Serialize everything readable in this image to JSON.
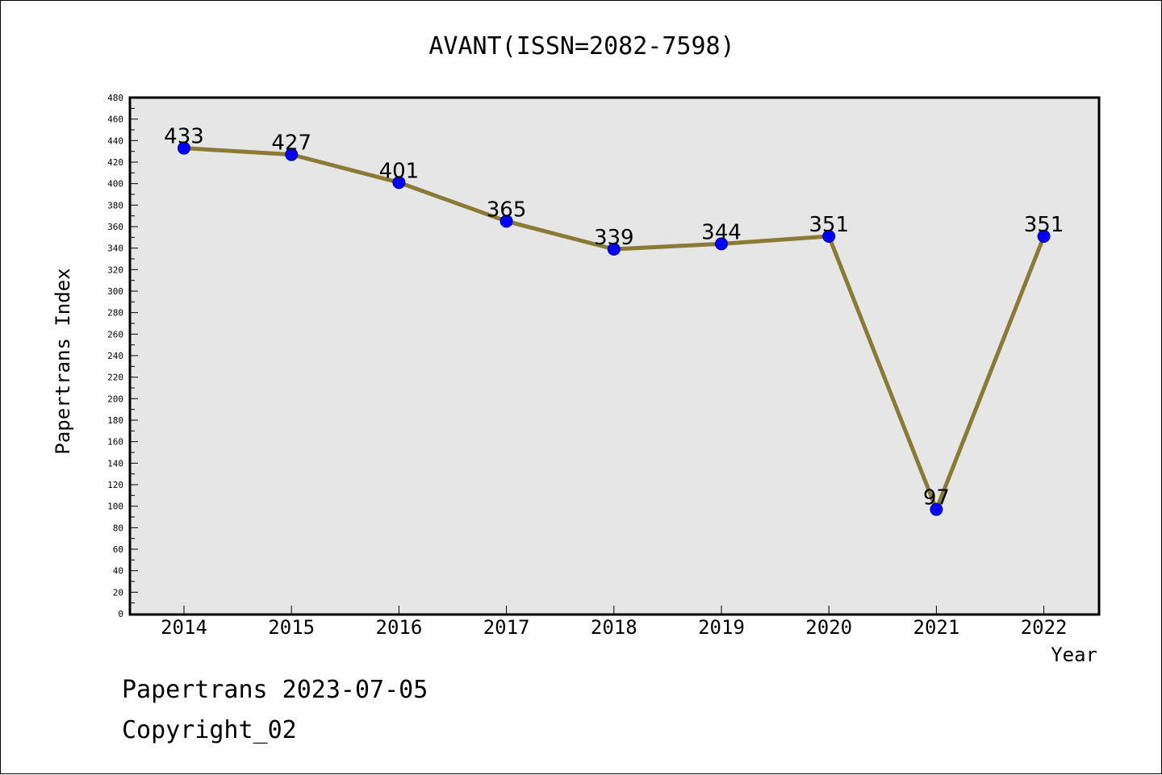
{
  "title": "AVANT(ISSN=2082-7598)",
  "footer": {
    "line1": "Papertrans 2023-07-05",
    "line2": "Copyright_02"
  },
  "chart_data": {
    "type": "line",
    "title": "AVANT(ISSN=2082-7598)",
    "xlabel": "Year",
    "ylabel": "Papertrans Index",
    "categories": [
      "2014",
      "2015",
      "2016",
      "2017",
      "2018",
      "2019",
      "2020",
      "2021",
      "2022"
    ],
    "values": [
      433,
      427,
      401,
      365,
      339,
      344,
      351,
      97,
      351
    ],
    "ylim": [
      0,
      480
    ],
    "ytick_step": 20,
    "grid": false,
    "colors": {
      "line": "#8b7a35",
      "marker": "#0000ff",
      "plot_background": "#e6e6e6"
    }
  }
}
